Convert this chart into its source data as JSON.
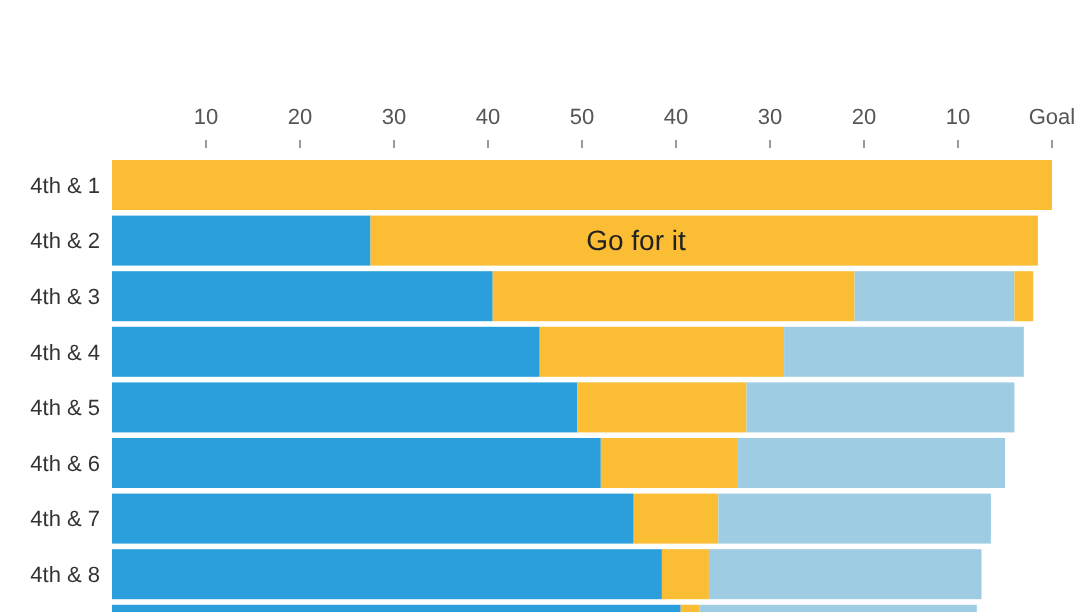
{
  "chart_data": {
    "type": "bar",
    "orientation": "horizontal",
    "stacked": true,
    "categories": [
      "4th & 1",
      "4th & 2",
      "4th & 3",
      "4th & 4",
      "4th & 5",
      "4th & 6",
      "4th & 7",
      "4th & 8",
      null
    ],
    "series": [
      {
        "color": "#2a9fdb",
        "values": [
          null,
          27.5,
          40.5,
          45.5,
          49.5,
          52,
          55.5,
          58.5,
          60.5
        ]
      },
      {
        "color": "#fbbd33",
        "values": [
          100,
          71,
          38.5,
          26,
          18,
          14.5,
          9,
          5,
          2
        ]
      },
      {
        "color": "#9ecde3",
        "values": [
          null,
          null,
          17,
          25.5,
          28.5,
          28.5,
          29,
          29,
          29.5
        ]
      },
      {
        "color": "#fbbd33",
        "values": [
          null,
          null,
          2,
          null,
          null,
          null,
          null,
          null,
          null
        ]
      }
    ],
    "xlim": [
      0,
      100
    ],
    "xticks": [
      10,
      20,
      30,
      40,
      50
    ],
    "x2lim": [
      100,
      0
    ],
    "x2ticks": [
      40,
      30,
      20,
      10,
      {
        "value": 0,
        "label": "Goal"
      }
    ],
    "annotations": [
      "Go for it"
    ]
  }
}
